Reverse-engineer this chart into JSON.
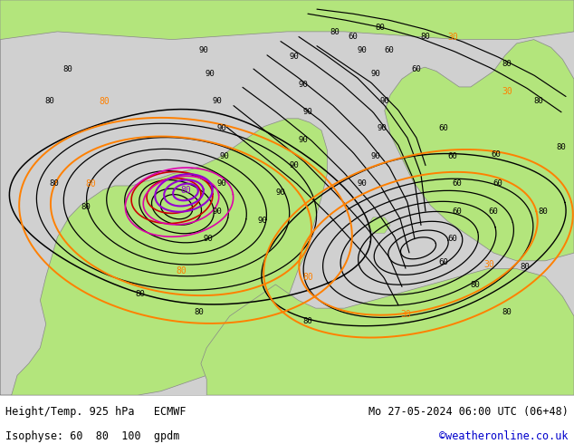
{
  "title_left": "Height/Temp. 925 hPa   ECMWF",
  "title_right": "Mo 27-05-2024 06:00 UTC (06+48)",
  "subtitle_left": "Isophyse: 60  80  100  gpdm",
  "subtitle_right": "©weatheronline.co.uk",
  "subtitle_right_color": "#0000cc",
  "background_land_green": "#b3e57c",
  "background_sea_gray": "#d0d0d0",
  "background_white": "#f5f5f5",
  "contour_black": "#000000",
  "contour_orange": "#ff8000",
  "contour_purple": "#9400d3",
  "contour_red": "#cc0000",
  "contour_magenta": "#dd00aa",
  "fig_width": 6.34,
  "fig_height": 4.9,
  "dpi": 100,
  "text_color": "#000000",
  "footer_bg": "#ffffff"
}
